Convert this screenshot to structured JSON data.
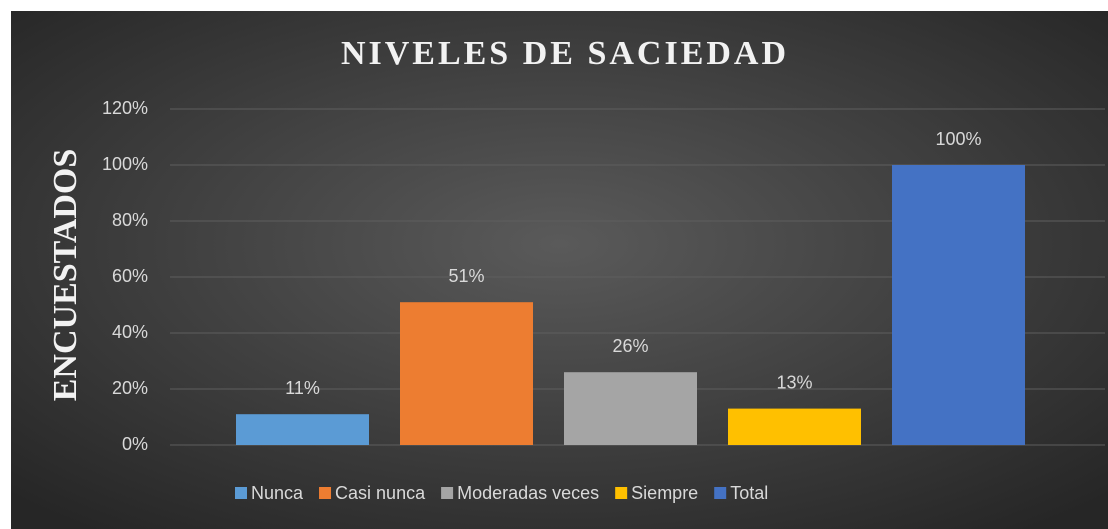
{
  "chart_data": {
    "type": "bar",
    "title": "NIVELES DE SACIEDAD",
    "y_label": "ENCUESTADOS",
    "categories": [
      null
    ],
    "series": [
      {
        "name": "Nunca",
        "color": "#5b9bd5",
        "values": [
          11
        ],
        "value_labels": [
          "11%"
        ]
      },
      {
        "name": "Casi nunca",
        "color": "#ed7d31",
        "values": [
          51
        ],
        "value_labels": [
          "51%"
        ]
      },
      {
        "name": "Moderadas veces",
        "color": "#a5a5a5",
        "values": [
          26
        ],
        "value_labels": [
          "26%"
        ]
      },
      {
        "name": "Siempre",
        "color": "#ffc000",
        "values": [
          13
        ],
        "value_labels": [
          "13%"
        ]
      },
      {
        "name": "Total",
        "color": "#4472c4",
        "values": [
          100
        ],
        "value_labels": [
          "100%"
        ]
      }
    ],
    "ylim": [
      0,
      120
    ],
    "yticks": [
      {
        "value": 0,
        "label": "0%"
      },
      {
        "value": 20,
        "label": "20%"
      },
      {
        "value": 40,
        "label": "40%"
      },
      {
        "value": 60,
        "label": "60%"
      },
      {
        "value": 80,
        "label": "80%"
      },
      {
        "value": 100,
        "label": "100%"
      },
      {
        "value": 120,
        "label": "120%"
      }
    ],
    "grid": true,
    "legend": "bottom"
  }
}
